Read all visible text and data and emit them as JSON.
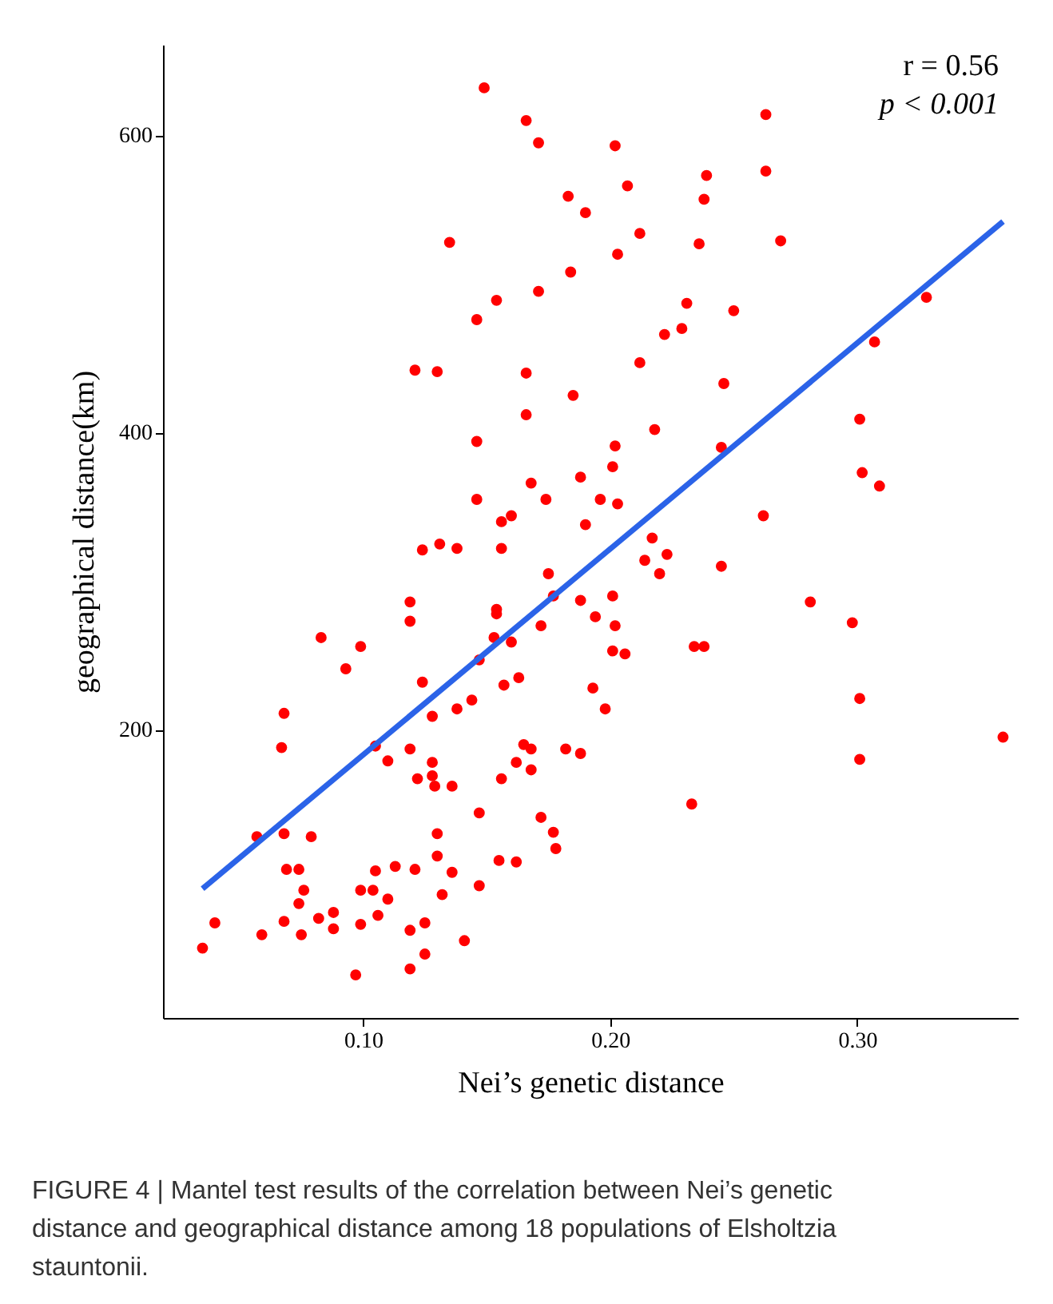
{
  "chart_data": {
    "type": "scatter",
    "xlabel": "Nei’s genetic distance",
    "ylabel": "geographical distance(km)",
    "xlim": [
      0.019,
      0.365
    ],
    "ylim": [
      6,
      661
    ],
    "xticks": [
      {
        "value": 0.1,
        "label": "0.10"
      },
      {
        "value": 0.2,
        "label": "0.20"
      },
      {
        "value": 0.3,
        "label": "0.30"
      }
    ],
    "yticks": [
      200,
      400,
      600
    ],
    "grid": false,
    "series": [
      {
        "color": "#ff0000",
        "marker": "circle",
        "x": [
          0.149,
          0.166,
          0.171,
          0.183,
          0.19,
          0.135,
          0.184,
          0.171,
          0.154,
          0.146,
          0.121,
          0.13,
          0.166,
          0.185,
          0.166,
          0.146,
          0.168,
          0.188,
          0.146,
          0.174,
          0.16,
          0.156,
          0.19,
          0.131,
          0.124,
          0.138,
          0.156,
          0.196,
          0.263,
          0.202,
          0.239,
          0.263,
          0.207,
          0.238,
          0.212,
          0.203,
          0.236,
          0.269,
          0.328,
          0.231,
          0.25,
          0.222,
          0.229,
          0.307,
          0.212,
          0.246,
          0.301,
          0.218,
          0.202,
          0.245,
          0.201,
          0.302,
          0.309,
          0.203,
          0.262,
          0.217,
          0.175,
          0.177,
          0.119,
          0.119,
          0.154,
          0.154,
          0.188,
          0.194,
          0.172,
          0.083,
          0.099,
          0.153,
          0.16,
          0.093,
          0.147,
          0.124,
          0.157,
          0.163,
          0.193,
          0.068,
          0.128,
          0.138,
          0.144,
          0.067,
          0.105,
          0.119,
          0.11,
          0.128,
          0.122,
          0.128,
          0.129,
          0.136,
          0.156,
          0.162,
          0.165,
          0.168,
          0.168,
          0.182,
          0.188,
          0.147,
          0.172,
          0.177,
          0.178,
          0.057,
          0.068,
          0.079,
          0.13,
          0.13,
          0.069,
          0.074,
          0.113,
          0.121,
          0.105,
          0.136,
          0.155,
          0.162,
          0.076,
          0.099,
          0.104,
          0.132,
          0.147,
          0.11,
          0.074,
          0.088,
          0.082,
          0.068,
          0.106,
          0.04,
          0.099,
          0.088,
          0.059,
          0.075,
          0.119,
          0.125,
          0.141,
          0.035,
          0.125,
          0.119,
          0.097,
          0.223,
          0.214,
          0.22,
          0.245,
          0.201,
          0.202,
          0.201,
          0.206,
          0.281,
          0.298,
          0.234,
          0.238,
          0.198,
          0.301,
          0.359,
          0.301,
          0.233
        ],
        "values": [
          632,
          610,
          595,
          559,
          548,
          528,
          508,
          495,
          489,
          476,
          442,
          441,
          440,
          425,
          412,
          394,
          366,
          370,
          355,
          355,
          344,
          340,
          338,
          325,
          321,
          322,
          322,
          355,
          614,
          593,
          573,
          576,
          566,
          557,
          534,
          520,
          527,
          529,
          491,
          487,
          482,
          466,
          470,
          461,
          447,
          433,
          409,
          402,
          391,
          390,
          377,
          373,
          364,
          352,
          344,
          329,
          305,
          290,
          286,
          273,
          281,
          278,
          287,
          276,
          270,
          262,
          256,
          262,
          259,
          241,
          247,
          232,
          230,
          235,
          228,
          211,
          209,
          214,
          220,
          188,
          189,
          187,
          179,
          178,
          167,
          169,
          162,
          162,
          167,
          178,
          190,
          187,
          173,
          187,
          184,
          144,
          141,
          131,
          120,
          128,
          130,
          128,
          130,
          115,
          106,
          106,
          108,
          106,
          105,
          104,
          112,
          111,
          92,
          92,
          92,
          89,
          95,
          86,
          83,
          77,
          73,
          71,
          75,
          70,
          69,
          66,
          62,
          62,
          65,
          70,
          58,
          53,
          49,
          39,
          35,
          318,
          314,
          305,
          310,
          290,
          270,
          253,
          251,
          286,
          272,
          256,
          256,
          214,
          221,
          195,
          180,
          150
        ]
      },
      {
        "type": "line",
        "color": "#2b63e8",
        "x": [
          0.035,
          0.359
        ],
        "values": [
          93,
          542
        ]
      }
    ],
    "annotations": [
      "r = 0.56",
      "p < 0.001",
      "FIGURE 4 | Mantel test results of the correlation between Nei’s genetic distance and geographical distance among 18 populations of Elsholtzia stauntonii."
    ]
  }
}
